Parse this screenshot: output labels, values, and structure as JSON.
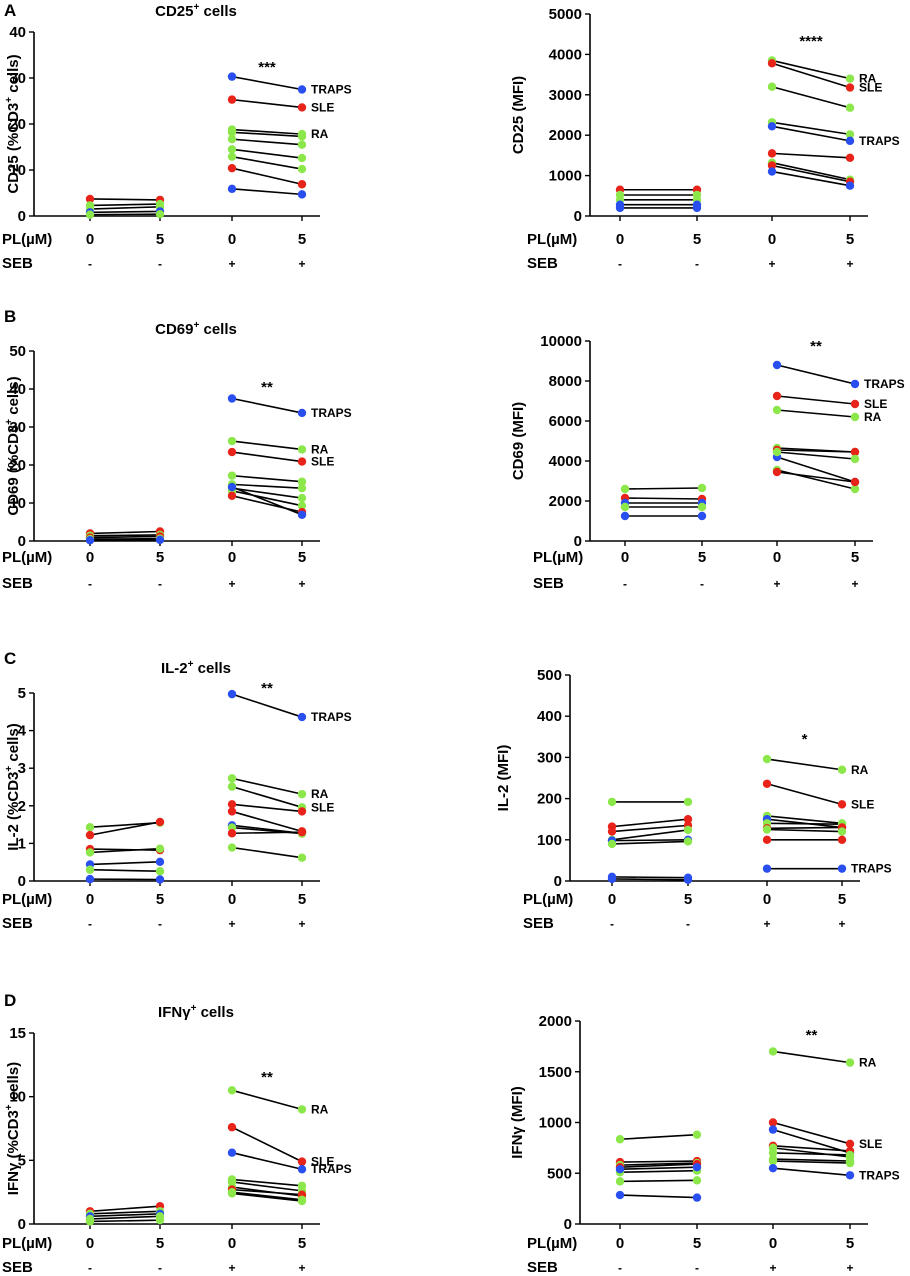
{
  "colors": {
    "red": "#e8231a",
    "green": "#8ce84a",
    "blue": "#2a4ff0",
    "line": "#000000"
  },
  "chart_data": [
    {
      "id": "A-left",
      "type": "line",
      "panel_letter": "A",
      "title": "CD25",
      "title_sup": "+",
      "title_suffix": " cells",
      "ylabel": "CD25 (%CD3",
      "ylabel_sup": "+",
      "ylabel_suffix": " cells)",
      "ylim": [
        0,
        40
      ],
      "yticks": [
        "0",
        "10",
        "20",
        "30",
        "40"
      ],
      "x_row_label": "PL(µM)",
      "x_labels": [
        "0",
        "5",
        "0",
        "5"
      ],
      "seb_row_label": "SEB",
      "seb_labels": [
        "-",
        "-",
        "+",
        "+"
      ],
      "significance": "***",
      "series_unstim": [
        {
          "color": "red",
          "values": [
            3.7,
            3.5
          ]
        },
        {
          "color": "green",
          "values": [
            2.3,
            2.6
          ]
        },
        {
          "color": "green",
          "values": [
            1.5,
            2.0
          ]
        },
        {
          "color": "blue",
          "values": [
            0.8,
            1.0
          ]
        },
        {
          "color": "green",
          "values": [
            0.3,
            0.4
          ]
        }
      ],
      "series_stim": [
        {
          "color": "blue",
          "values": [
            30.3,
            27.5
          ],
          "label": "TRAPS"
        },
        {
          "color": "red",
          "values": [
            25.3,
            23.6
          ],
          "label": "SLE"
        },
        {
          "color": "green",
          "values": [
            18.8,
            17.8
          ],
          "label": "RA"
        },
        {
          "color": "green",
          "values": [
            18.2,
            17.3
          ]
        },
        {
          "color": "green",
          "values": [
            16.7,
            15.5
          ]
        },
        {
          "color": "green",
          "values": [
            14.5,
            12.6
          ]
        },
        {
          "color": "green",
          "values": [
            12.9,
            10.2
          ]
        },
        {
          "color": "red",
          "values": [
            10.4,
            6.9
          ]
        },
        {
          "color": "blue",
          "values": [
            5.9,
            4.7
          ]
        }
      ]
    },
    {
      "id": "A-right",
      "type": "line",
      "title": "",
      "ylabel": "CD25 (MFI)",
      "ylim": [
        0,
        5000
      ],
      "yticks": [
        "0",
        "1000",
        "2000",
        "3000",
        "4000",
        "5000"
      ],
      "x_row_label": "PL(µM)",
      "x_labels": [
        "0",
        "5",
        "0",
        "5"
      ],
      "seb_row_label": "SEB",
      "seb_labels": [
        "-",
        "-",
        "+",
        "+"
      ],
      "significance": "****",
      "series_unstim": [
        {
          "color": "red",
          "values": [
            650,
            650
          ]
        },
        {
          "color": "green",
          "values": [
            520,
            520
          ]
        },
        {
          "color": "green",
          "values": [
            400,
            400
          ]
        },
        {
          "color": "blue",
          "values": [
            280,
            280
          ]
        },
        {
          "color": "blue",
          "values": [
            200,
            200
          ]
        }
      ],
      "series_stim": [
        {
          "color": "green",
          "values": [
            3850,
            3400
          ],
          "label": "RA"
        },
        {
          "color": "red",
          "values": [
            3780,
            3180
          ],
          "label": "SLE"
        },
        {
          "color": "green",
          "values": [
            3200,
            2680
          ]
        },
        {
          "color": "green",
          "values": [
            2320,
            2020
          ]
        },
        {
          "color": "blue",
          "values": [
            2220,
            1860
          ],
          "label": "TRAPS"
        },
        {
          "color": "red",
          "values": [
            1550,
            1440
          ]
        },
        {
          "color": "green",
          "values": [
            1320,
            900
          ]
        },
        {
          "color": "red",
          "values": [
            1250,
            850
          ]
        },
        {
          "color": "blue",
          "values": [
            1100,
            750
          ]
        }
      ]
    },
    {
      "id": "B-left",
      "type": "line",
      "panel_letter": "B",
      "title": "CD69",
      "title_sup": "+",
      "title_suffix": " cells",
      "ylabel": "CD69 (%CD3",
      "ylabel_sup": "+",
      "ylabel_suffix": " cells)",
      "ylim": [
        0,
        50
      ],
      "yticks": [
        "0",
        "10",
        "20",
        "30",
        "40",
        "50"
      ],
      "x_row_label": "PL(µM)",
      "x_labels": [
        "0",
        "5",
        "0",
        "5"
      ],
      "seb_row_label": "SEB",
      "seb_labels": [
        "-",
        "-",
        "+",
        "+"
      ],
      "significance": "**",
      "series_unstim": [
        {
          "color": "red",
          "values": [
            2.0,
            2.5
          ]
        },
        {
          "color": "green",
          "values": [
            1.4,
            1.6
          ]
        },
        {
          "color": "red",
          "values": [
            0.9,
            1.2
          ]
        },
        {
          "color": "green",
          "values": [
            0.5,
            0.6
          ]
        },
        {
          "color": "blue",
          "values": [
            0.2,
            0.3
          ]
        }
      ],
      "series_stim": [
        {
          "color": "blue",
          "values": [
            37.5,
            33.7
          ],
          "label": "TRAPS"
        },
        {
          "color": "green",
          "values": [
            26.3,
            24.1
          ],
          "label": "RA"
        },
        {
          "color": "red",
          "values": [
            23.4,
            20.9
          ],
          "label": "SLE"
        },
        {
          "color": "green",
          "values": [
            17.2,
            15.6
          ]
        },
        {
          "color": "green",
          "values": [
            14.9,
            13.9
          ]
        },
        {
          "color": "green",
          "values": [
            13.9,
            11.3
          ]
        },
        {
          "color": "green",
          "values": [
            13.2,
            9.3
          ]
        },
        {
          "color": "red",
          "values": [
            11.9,
            7.6
          ]
        },
        {
          "color": "blue",
          "values": [
            14.2,
            6.9
          ]
        }
      ]
    },
    {
      "id": "B-right",
      "type": "line",
      "title": "",
      "ylabel": "CD69 (MFI)",
      "ylim": [
        0,
        10000
      ],
      "yticks": [
        "0",
        "2000",
        "4000",
        "6000",
        "8000",
        "10000"
      ],
      "x_row_label": "PL(µM)",
      "x_labels": [
        "0",
        "5",
        "0",
        "5"
      ],
      "seb_row_label": "SEB",
      "seb_labels": [
        "-",
        "-",
        "+",
        "+"
      ],
      "significance": "**",
      "series_unstim": [
        {
          "color": "green",
          "values": [
            2600,
            2650
          ]
        },
        {
          "color": "red",
          "values": [
            2150,
            2100
          ]
        },
        {
          "color": "blue",
          "values": [
            1900,
            1900
          ]
        },
        {
          "color": "green",
          "values": [
            1700,
            1700
          ]
        },
        {
          "color": "blue",
          "values": [
            1250,
            1250
          ]
        }
      ],
      "series_stim": [
        {
          "color": "blue",
          "values": [
            8800,
            7850
          ],
          "label": "TRAPS"
        },
        {
          "color": "red",
          "values": [
            7250,
            6850
          ],
          "label": "SLE"
        },
        {
          "color": "green",
          "values": [
            6550,
            6200
          ],
          "label": "RA"
        },
        {
          "color": "green",
          "values": [
            4650,
            4450
          ]
        },
        {
          "color": "red",
          "values": [
            4550,
            4450
          ]
        },
        {
          "color": "blue",
          "values": [
            4200,
            2950
          ]
        },
        {
          "color": "green",
          "values": [
            4450,
            4100
          ]
        },
        {
          "color": "green",
          "values": [
            3550,
            2600
          ]
        },
        {
          "color": "red",
          "values": [
            3450,
            2950
          ]
        }
      ]
    },
    {
      "id": "C-left",
      "type": "line",
      "panel_letter": "C",
      "title": "IL-2",
      "title_sup": "+",
      "title_suffix": " cells",
      "ylabel": "IL-2 (%CD3",
      "ylabel_sup": "+",
      "ylabel_suffix": " cells)",
      "ylim": [
        0,
        5
      ],
      "yticks": [
        "0",
        "1",
        "2",
        "3",
        "4",
        "5"
      ],
      "x_row_label": "PL(µM)",
      "x_labels": [
        "0",
        "5",
        "0",
        "5"
      ],
      "seb_row_label": "SEB",
      "seb_labels": [
        "-",
        "-",
        "+",
        "+"
      ],
      "significance": "**",
      "series_unstim": [
        {
          "color": "green",
          "values": [
            1.43,
            1.55
          ]
        },
        {
          "color": "red",
          "values": [
            1.22,
            1.57
          ]
        },
        {
          "color": "red",
          "values": [
            0.85,
            0.82
          ]
        },
        {
          "color": "green",
          "values": [
            0.76,
            0.86
          ]
        },
        {
          "color": "blue",
          "values": [
            0.44,
            0.51
          ]
        },
        {
          "color": "green",
          "values": [
            0.3,
            0.26
          ]
        },
        {
          "color": "blue",
          "values": [
            0.05,
            0.04
          ]
        }
      ],
      "series_stim": [
        {
          "color": "blue",
          "values": [
            4.97,
            4.36
          ],
          "label": "TRAPS"
        },
        {
          "color": "green",
          "values": [
            2.73,
            2.31
          ],
          "label": "RA"
        },
        {
          "color": "green",
          "values": [
            2.51,
            1.96
          ],
          "label": "SLE"
        },
        {
          "color": "red",
          "values": [
            2.04,
            1.85
          ]
        },
        {
          "color": "red",
          "values": [
            1.85,
            1.32
          ]
        },
        {
          "color": "blue",
          "values": [
            1.48,
            1.27
          ]
        },
        {
          "color": "green",
          "values": [
            1.42,
            1.26
          ]
        },
        {
          "color": "red",
          "values": [
            1.27,
            1.3
          ]
        },
        {
          "color": "green",
          "values": [
            0.89,
            0.62
          ]
        }
      ]
    },
    {
      "id": "C-right",
      "type": "line",
      "title": "",
      "ylabel": "IL-2 (MFI)",
      "ylim": [
        0,
        500
      ],
      "yticks": [
        "0",
        "100",
        "200",
        "300",
        "400",
        "500"
      ],
      "x_row_label": "PL(µM)",
      "x_labels": [
        "0",
        "5",
        "0",
        "5"
      ],
      "seb_row_label": "SEB",
      "seb_labels": [
        "-",
        "-",
        "+",
        "+"
      ],
      "significance": "*",
      "series_unstim": [
        {
          "color": "green",
          "values": [
            192,
            192
          ]
        },
        {
          "color": "red",
          "values": [
            132,
            150
          ]
        },
        {
          "color": "red",
          "values": [
            120,
            135
          ]
        },
        {
          "color": "green",
          "values": [
            100,
            124
          ]
        },
        {
          "color": "blue",
          "values": [
            98,
            100
          ]
        },
        {
          "color": "green",
          "values": [
            90,
            96
          ]
        },
        {
          "color": "blue",
          "values": [
            10,
            8
          ]
        },
        {
          "color": "blue",
          "values": [
            5,
            3
          ]
        }
      ],
      "series_stim": [
        {
          "color": "green",
          "values": [
            296,
            270
          ],
          "label": "RA"
        },
        {
          "color": "red",
          "values": [
            236,
            186
          ],
          "label": "SLE"
        },
        {
          "color": "green",
          "values": [
            158,
            140
          ]
        },
        {
          "color": "blue",
          "values": [
            150,
            130
          ]
        },
        {
          "color": "green",
          "values": [
            140,
            138
          ]
        },
        {
          "color": "red",
          "values": [
            128,
            130
          ]
        },
        {
          "color": "green",
          "values": [
            125,
            120
          ]
        },
        {
          "color": "red",
          "values": [
            100,
            100
          ]
        },
        {
          "color": "blue",
          "values": [
            30,
            30
          ],
          "label": "TRAPS"
        }
      ]
    },
    {
      "id": "D-left",
      "type": "line",
      "panel_letter": "D",
      "title": "IFNγ",
      "title_sup": "+",
      "title_suffix": " cells",
      "ylabel": "IFNγ (%CD3",
      "ylabel_sup": "+",
      "ylabel_suffix": " cells)",
      "ylim": [
        0,
        15
      ],
      "yticks": [
        "0",
        "5",
        "10",
        "15"
      ],
      "x_row_label": "PL(µM)",
      "x_labels": [
        "0",
        "5",
        "0",
        "5"
      ],
      "seb_row_label": "SEB",
      "seb_labels": [
        "-",
        "-",
        "+",
        "+"
      ],
      "significance": "**",
      "series_unstim": [
        {
          "color": "red",
          "values": [
            1.0,
            1.4
          ]
        },
        {
          "color": "green",
          "values": [
            0.8,
            1.0
          ]
        },
        {
          "color": "blue",
          "values": [
            0.6,
            0.8
          ]
        },
        {
          "color": "green",
          "values": [
            0.4,
            0.6
          ]
        },
        {
          "color": "green",
          "values": [
            0.2,
            0.3
          ]
        }
      ],
      "series_stim": [
        {
          "color": "green",
          "values": [
            10.5,
            9.0
          ],
          "label": "RA"
        },
        {
          "color": "red",
          "values": [
            7.6,
            4.9
          ],
          "label": "SLE"
        },
        {
          "color": "blue",
          "values": [
            5.6,
            4.3
          ],
          "label": "TRAPS"
        },
        {
          "color": "green",
          "values": [
            3.5,
            3.0
          ]
        },
        {
          "color": "green",
          "values": [
            3.3,
            2.6
          ]
        },
        {
          "color": "green",
          "values": [
            2.9,
            2.2
          ]
        },
        {
          "color": "red",
          "values": [
            2.7,
            2.3
          ]
        },
        {
          "color": "green",
          "values": [
            2.5,
            1.9
          ]
        },
        {
          "color": "green",
          "values": [
            2.4,
            1.8
          ]
        }
      ]
    },
    {
      "id": "D-right",
      "type": "line",
      "title": "",
      "ylabel": "IFNγ (MFI)",
      "ylim": [
        0,
        2000
      ],
      "yticks": [
        "0",
        "500",
        "1000",
        "1500",
        "2000"
      ],
      "x_row_label": "PL(µM)",
      "x_labels": [
        "0",
        "5",
        "0",
        "5"
      ],
      "seb_row_label": "SEB",
      "seb_labels": [
        "-",
        "-",
        "+",
        "+"
      ],
      "significance": "**",
      "series_unstim": [
        {
          "color": "green",
          "values": [
            835,
            880
          ]
        },
        {
          "color": "red",
          "values": [
            610,
            620
          ]
        },
        {
          "color": "green",
          "values": [
            580,
            600
          ]
        },
        {
          "color": "red",
          "values": [
            560,
            590
          ]
        },
        {
          "color": "green",
          "values": [
            510,
            525
          ]
        },
        {
          "color": "blue",
          "values": [
            540,
            560
          ]
        },
        {
          "color": "green",
          "values": [
            420,
            430
          ]
        },
        {
          "color": "blue",
          "values": [
            285,
            260
          ]
        }
      ],
      "series_stim": [
        {
          "color": "green",
          "values": [
            1700,
            1590
          ],
          "label": "RA"
        },
        {
          "color": "red",
          "values": [
            1000,
            790
          ],
          "label": "SLE"
        },
        {
          "color": "blue",
          "values": [
            930,
            700
          ]
        },
        {
          "color": "red",
          "values": [
            770,
            720
          ]
        },
        {
          "color": "green",
          "values": [
            750,
            660
          ]
        },
        {
          "color": "green",
          "values": [
            700,
            680
          ]
        },
        {
          "color": "green",
          "values": [
            640,
            620
          ]
        },
        {
          "color": "green",
          "values": [
            620,
            600
          ]
        },
        {
          "color": "blue",
          "values": [
            550,
            480
          ],
          "label": "TRAPS"
        }
      ]
    }
  ]
}
